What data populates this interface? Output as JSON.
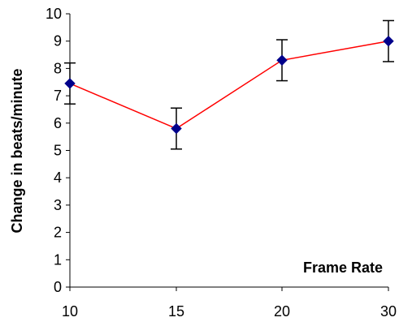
{
  "chart_data": {
    "type": "line",
    "title": "",
    "xlabel": "Frame Rate",
    "ylabel": "Change in beats/minute",
    "categories": [
      "10",
      "15",
      "20",
      "30"
    ],
    "ylim": [
      0,
      10
    ],
    "yticks": [
      "0",
      "1",
      "2",
      "3",
      "4",
      "5",
      "6",
      "7",
      "8",
      "9",
      "10"
    ],
    "grid": false,
    "legend": "none",
    "series": [
      {
        "values": [
          7.45,
          5.8,
          8.3,
          9.0
        ],
        "error": [
          0.75,
          0.75,
          0.75,
          0.75
        ],
        "line_color": "#ff0000",
        "marker_color": "#00008b",
        "marker": "diamond"
      }
    ]
  }
}
